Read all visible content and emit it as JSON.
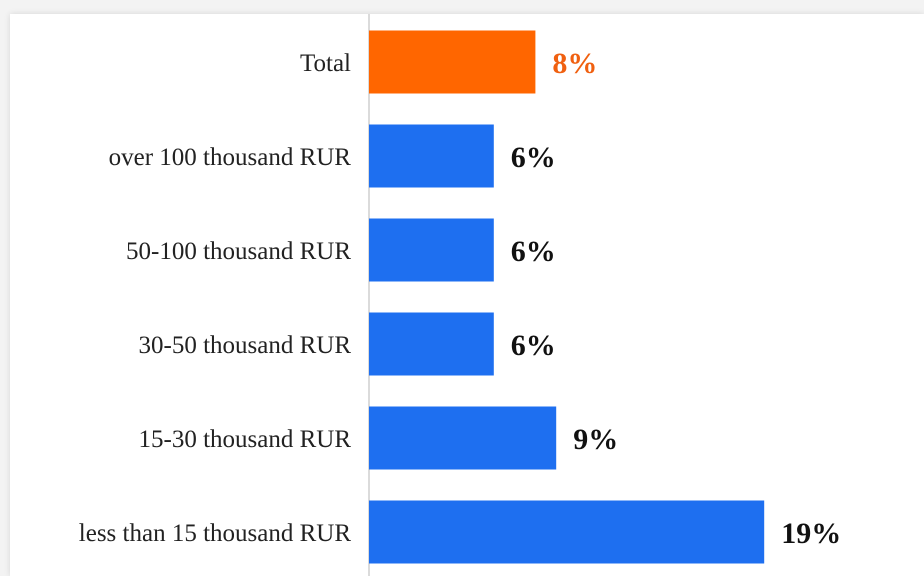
{
  "chart_data": {
    "type": "bar",
    "orientation": "horizontal",
    "categories": [
      "Total",
      "over 100 thousand RUR",
      "50-100 thousand RUR",
      "30-50 thousand RUR",
      "15-30 thousand RUR",
      "less than 15 thousand RUR"
    ],
    "values": [
      8,
      6,
      6,
      6,
      9,
      19
    ],
    "value_labels": [
      "8%",
      "6%",
      "6%",
      "6%",
      "9%",
      "19%"
    ],
    "unit": "%",
    "title": "",
    "xlabel": "",
    "ylabel": "",
    "xlim": [
      0,
      22
    ],
    "grid": false,
    "legend": "none",
    "colors": {
      "highlight": "#ff6600",
      "bar": "#1e6ff0",
      "highlight_label": "#f06010",
      "label": "#111111",
      "axis": "#cfcfcf"
    },
    "highlight_index": 0
  }
}
